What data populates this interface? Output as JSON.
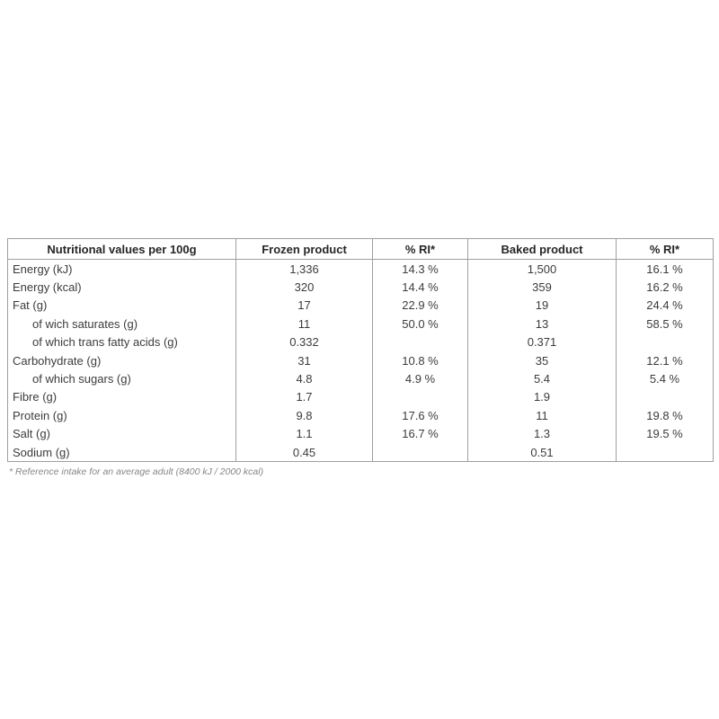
{
  "chart_data": {
    "type": "table",
    "title": "Nutritional values per 100g",
    "columns": [
      "Nutritional values per 100g",
      "Frozen product",
      "% RI*",
      "Baked product",
      "% RI*"
    ],
    "rows": [
      {
        "label": "Energy (kJ)",
        "indent": false,
        "frozen": "1,336",
        "frozen_ri": "14.3 %",
        "baked": "1,500",
        "baked_ri": "16.1 %"
      },
      {
        "label": "Energy (kcal)",
        "indent": false,
        "frozen": "320",
        "frozen_ri": "14.4 %",
        "baked": "359",
        "baked_ri": "16.2 %"
      },
      {
        "label": "Fat (g)",
        "indent": false,
        "frozen": "17",
        "frozen_ri": "22.9 %",
        "baked": "19",
        "baked_ri": "24.4 %"
      },
      {
        "label": "of wich saturates (g)",
        "indent": true,
        "frozen": "11",
        "frozen_ri": "50.0 %",
        "baked": "13",
        "baked_ri": "58.5 %"
      },
      {
        "label": "of which trans fatty acids (g)",
        "indent": true,
        "frozen": "0.332",
        "frozen_ri": "",
        "baked": "0.371",
        "baked_ri": ""
      },
      {
        "label": "Carbohydrate (g)",
        "indent": false,
        "frozen": "31",
        "frozen_ri": "10.8 %",
        "baked": "35",
        "baked_ri": "12.1 %"
      },
      {
        "label": "of which sugars (g)",
        "indent": true,
        "frozen": "4.8",
        "frozen_ri": "4.9 %",
        "baked": "5.4",
        "baked_ri": "5.4 %"
      },
      {
        "label": "Fibre (g)",
        "indent": false,
        "frozen": "1.7",
        "frozen_ri": "",
        "baked": "1.9",
        "baked_ri": ""
      },
      {
        "label": "Protein (g)",
        "indent": false,
        "frozen": "9.8",
        "frozen_ri": "17.6 %",
        "baked": "11",
        "baked_ri": "19.8 %"
      },
      {
        "label": "Salt (g)",
        "indent": false,
        "frozen": "1.1",
        "frozen_ri": "16.7 %",
        "baked": "1.3",
        "baked_ri": "19.5 %"
      },
      {
        "label": "Sodium (g)",
        "indent": false,
        "frozen": "0.45",
        "frozen_ri": "",
        "baked": "0.51",
        "baked_ri": ""
      }
    ],
    "footnote": "* Reference intake for an average adult (8400 kJ / 2000 kcal)"
  },
  "colors": {
    "background": "#ffffff",
    "border": "#9f9f9f",
    "header_text": "#262626",
    "body_text": "#3c3c3c",
    "footnote_text": "#878787"
  }
}
